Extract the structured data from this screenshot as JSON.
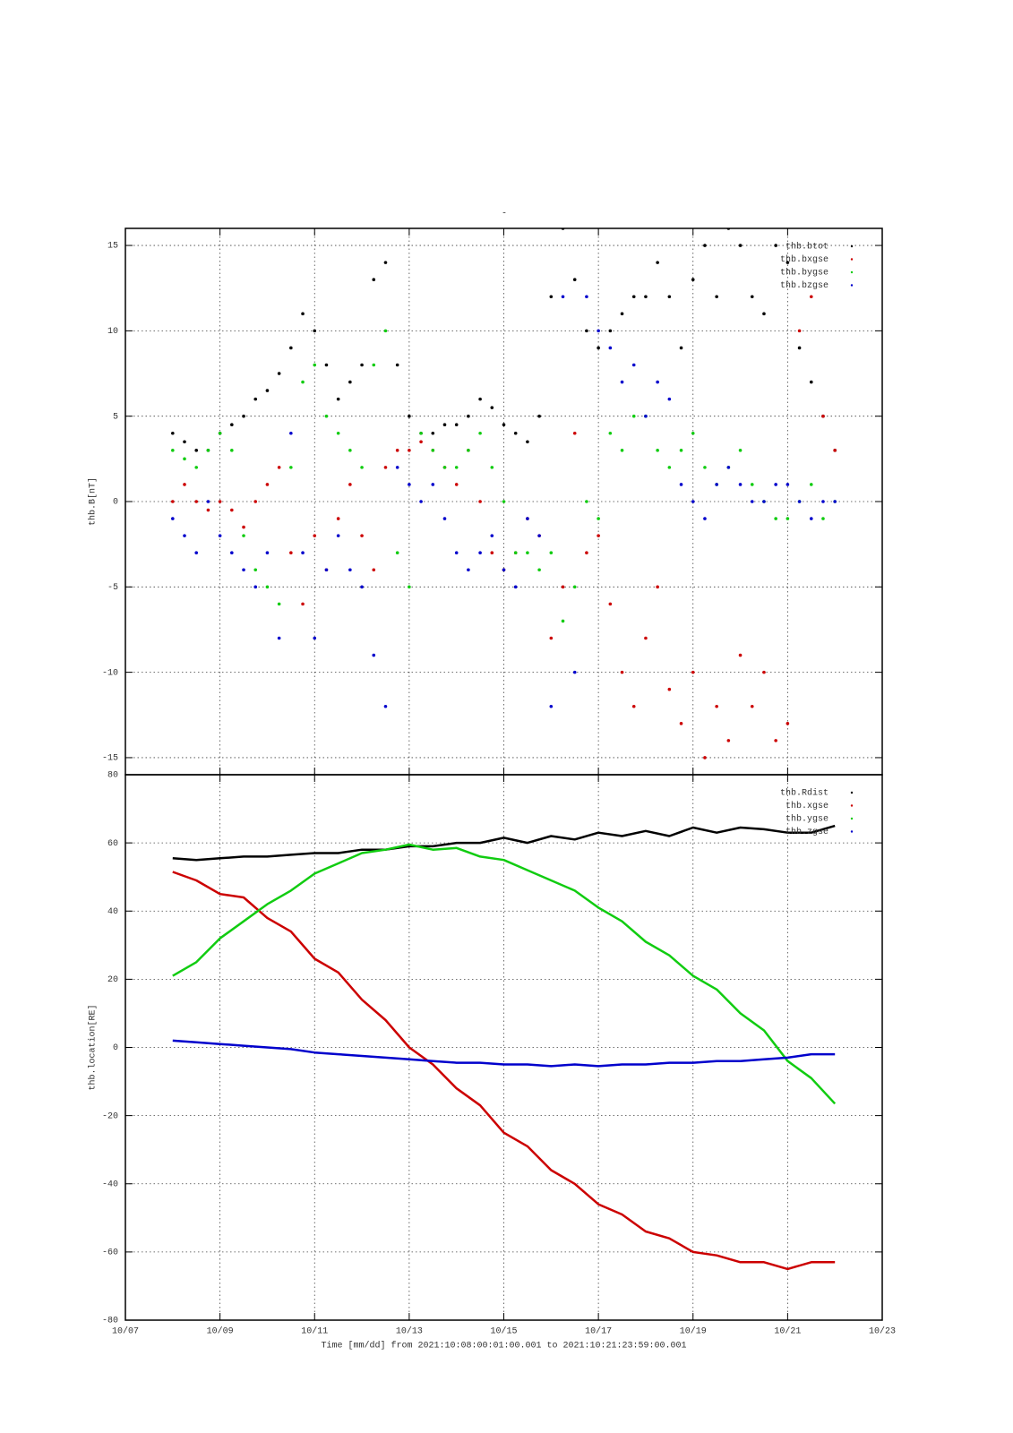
{
  "chart_data": [
    {
      "type": "scatter",
      "title": "-",
      "ylabel": "thb.B[nT]",
      "xlim": [
        7,
        23
      ],
      "ylim": [
        -16,
        16
      ],
      "yticks": [
        15,
        10,
        5,
        0,
        -5,
        -10,
        -15
      ],
      "grid": true,
      "legend": "upper right",
      "x": [
        8,
        8.25,
        8.5,
        8.75,
        9,
        9.25,
        9.5,
        9.75,
        10,
        10.25,
        10.5,
        10.75,
        11,
        11.25,
        11.5,
        11.75,
        12,
        12.25,
        12.5,
        12.75,
        13,
        13.25,
        13.5,
        13.75,
        14,
        14.25,
        14.5,
        14.75,
        15,
        15.25,
        15.5,
        15.75,
        16,
        16.25,
        16.5,
        16.75,
        17,
        17.25,
        17.5,
        17.75,
        18,
        18.25,
        18.5,
        18.75,
        19,
        19.25,
        19.5,
        19.75,
        20,
        20.25,
        20.5,
        20.75,
        21,
        21.25,
        21.5,
        21.75,
        22
      ],
      "series": [
        {
          "name": "thb.btot",
          "color": "#000000",
          "values": [
            4,
            3.5,
            3,
            3,
            4,
            4.5,
            5,
            6,
            6.5,
            7.5,
            9,
            11,
            10,
            8,
            6,
            7,
            8,
            13,
            14,
            8,
            5,
            4,
            4,
            4.5,
            4.5,
            5,
            6,
            5.5,
            4.5,
            4,
            3.5,
            5,
            12,
            16,
            13,
            10,
            9,
            10,
            11,
            12,
            12,
            14,
            12,
            9,
            13,
            15,
            12,
            16,
            15,
            12,
            11,
            15,
            14,
            9,
            7,
            5,
            3
          ]
        },
        {
          "name": "thb.bxgse",
          "color": "#cc0000",
          "values": [
            0,
            1,
            0,
            -0.5,
            0,
            -0.5,
            -1.5,
            0,
            1,
            2,
            -3,
            -6,
            -2,
            -4,
            -1,
            1,
            -2,
            -4,
            2,
            3,
            3,
            3.5,
            3,
            2,
            1,
            3,
            0,
            -3,
            -4,
            -3,
            -1,
            -2,
            -8,
            -5,
            4,
            -3,
            -2,
            -6,
            -10,
            -12,
            -8,
            -5,
            -11,
            -13,
            -10,
            -15,
            -12,
            -14,
            -9,
            -12,
            -10,
            -14,
            -13,
            10,
            12,
            5,
            3
          ]
        },
        {
          "name": "thb.bygse",
          "color": "#11cc11",
          "values": [
            3,
            2.5,
            2,
            3,
            4,
            3,
            -2,
            -4,
            -5,
            -6,
            2,
            7,
            8,
            5,
            4,
            3,
            2,
            8,
            10,
            -3,
            -5,
            4,
            3,
            2,
            2,
            3,
            4,
            2,
            0,
            -3,
            -3,
            -4,
            -3,
            -7,
            -5,
            0,
            -1,
            4,
            3,
            5,
            5,
            3,
            2,
            3,
            4,
            2,
            1,
            2,
            3,
            1,
            0,
            -1,
            -1,
            0,
            1,
            -1,
            0
          ]
        },
        {
          "name": "thb.bzgse",
          "color": "#0000cc",
          "values": [
            -1,
            -2,
            -3,
            0,
            -2,
            -3,
            -4,
            -5,
            -3,
            -8,
            4,
            -3,
            -8,
            -4,
            -2,
            -4,
            -5,
            -9,
            -12,
            2,
            1,
            0,
            1,
            -1,
            -3,
            -4,
            -3,
            -2,
            -4,
            -5,
            -1,
            -2,
            -12,
            12,
            -10,
            12,
            10,
            9,
            7,
            8,
            5,
            7,
            6,
            1,
            0,
            -1,
            1,
            2,
            1,
            0,
            0,
            1,
            1,
            0,
            -1,
            0,
            0
          ]
        }
      ]
    },
    {
      "type": "line",
      "ylabel": "thb.location[RE]",
      "xlabel": "Time [mm/dd]  from 2021:10:08:00:01:00.001  to  2021:10:21:23:59:00.001",
      "xlim": [
        7,
        23
      ],
      "ylim": [
        -80,
        80
      ],
      "yticks": [
        80,
        60,
        40,
        20,
        0,
        -20,
        -40,
        -60,
        -80
      ],
      "xticks": [
        {
          "value": 7,
          "label": "10/07"
        },
        {
          "value": 9,
          "label": "10/09"
        },
        {
          "value": 11,
          "label": "10/11"
        },
        {
          "value": 13,
          "label": "10/13"
        },
        {
          "value": 15,
          "label": "10/15"
        },
        {
          "value": 17,
          "label": "10/17"
        },
        {
          "value": 19,
          "label": "10/19"
        },
        {
          "value": 21,
          "label": "10/21"
        },
        {
          "value": 23,
          "label": "10/23"
        }
      ],
      "grid": true,
      "legend": "upper right",
      "x": [
        8,
        8.5,
        9,
        9.5,
        10,
        10.5,
        11,
        11.5,
        12,
        12.5,
        13,
        13.5,
        14,
        14.5,
        15,
        15.5,
        16,
        16.5,
        17,
        17.5,
        18,
        18.5,
        19,
        19.5,
        20,
        20.5,
        21,
        21.5,
        22
      ],
      "series": [
        {
          "name": "thb.Rdist",
          "color": "#000000",
          "values": [
            55.5,
            55,
            55.5,
            56,
            56,
            56.5,
            57,
            57,
            58,
            58,
            59,
            59,
            60,
            60,
            61.5,
            60,
            62,
            61,
            63,
            62,
            63.5,
            62,
            64.5,
            63,
            64.5,
            64,
            63,
            63,
            65
          ]
        },
        {
          "name": "thb.xgse",
          "color": "#cc0000",
          "values": [
            51.5,
            49,
            45,
            44,
            38,
            34,
            26,
            22,
            14,
            8,
            0,
            -5,
            -12,
            -17,
            -25,
            -29,
            -36,
            -40,
            -46,
            -49,
            -54,
            -56,
            -60,
            -61,
            -63,
            -63,
            -65,
            -63,
            -63
          ]
        },
        {
          "name": "thb.ygse",
          "color": "#11cc11",
          "values": [
            21,
            25,
            32,
            37,
            42,
            46,
            51,
            54,
            57,
            58,
            59.5,
            58,
            58.5,
            56,
            55,
            52,
            49,
            46,
            41,
            37,
            31,
            27,
            21,
            17,
            10,
            5,
            -4,
            -9,
            -16.5
          ]
        },
        {
          "name": "thb.zgse",
          "color": "#0000cc",
          "values": [
            2,
            1.5,
            1,
            0.5,
            0,
            -0.5,
            -1.5,
            -2,
            -2.5,
            -3,
            -3.5,
            -4,
            -4.5,
            -4.5,
            -5,
            -5,
            -5.5,
            -5,
            -5.5,
            -5,
            -5,
            -4.5,
            -4.5,
            -4,
            -4,
            -3.5,
            -3,
            -2,
            -2
          ]
        }
      ]
    }
  ]
}
